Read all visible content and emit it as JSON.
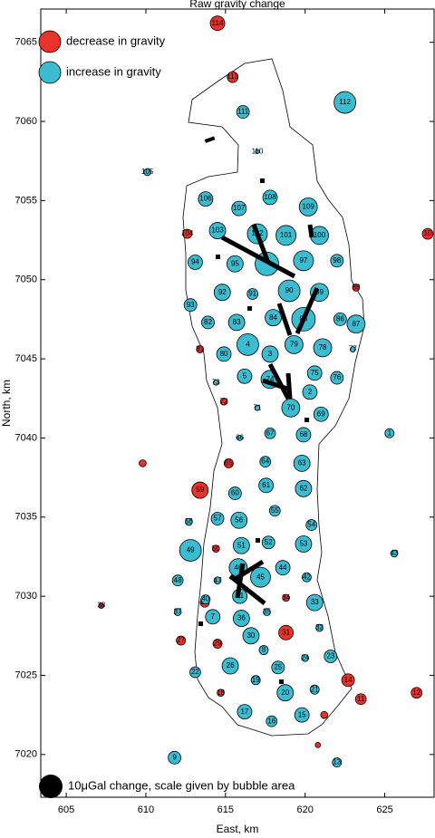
{
  "chart_data": {
    "type": "bubble",
    "title": "Raw gravity change",
    "xlabel": "East, km",
    "ylabel": "North, km",
    "xlim": [
      603.4,
      628.1
    ],
    "ylim": [
      7017.3,
      7067.1
    ],
    "xticks": [
      605,
      610,
      615,
      620,
      625
    ],
    "yticks": [
      7020,
      7025,
      7030,
      7035,
      7040,
      7045,
      7050,
      7055,
      7060,
      7065
    ],
    "size_legend": {
      "label": "10μGal change, scale given by bubble area",
      "value": 10,
      "color": "#000000"
    },
    "series": [
      {
        "name": "decrease in gravity",
        "color": "#e8322a",
        "labels": [
          "114",
          "113",
          "104",
          "88",
          "81",
          "72",
          "65",
          null,
          "59",
          "50",
          "39",
          "34",
          "31",
          "29",
          "27",
          "38",
          "18",
          "14",
          "11",
          "12",
          "10",
          null,
          null
        ],
        "x": [
          614.5,
          615.45,
          612.6,
          623.2,
          613.4,
          614.9,
          615.2,
          609.8,
          613.4,
          614.4,
          613.7,
          618.8,
          618.8,
          614.5,
          612.2,
          607.2,
          614.7,
          622.7,
          623.5,
          627.0,
          627.7,
          621.2,
          620.8
        ],
        "y": [
          7066.2,
          7062.8,
          7052.9,
          7049.5,
          7045.6,
          7042.3,
          7038.4,
          7038.4,
          7036.7,
          7033.0,
          7029.6,
          7029.9,
          7027.7,
          7027.0,
          7027.2,
          7029.4,
          7023.9,
          7024.7,
          7023.5,
          7023.9,
          7052.9,
          7022.5,
          7020.6
        ],
        "sizes": [
          3.8,
          2.1,
          1.5,
          0.9,
          0.9,
          0.9,
          1.5,
          0.9,
          4.8,
          0.9,
          1.5,
          0.9,
          3.8,
          1.5,
          1.5,
          0.5,
          0.9,
          2.9,
          2.1,
          2.1,
          2.1,
          0.9,
          0.5
        ]
      },
      {
        "name": "increase in gravity",
        "color": "#3bbcd0",
        "labels": [
          "112",
          "111",
          "110",
          "105",
          "106",
          "107",
          "108",
          "109",
          "103",
          "102",
          "101",
          "100",
          null,
          "97",
          "98",
          "94",
          "95",
          "90",
          "89",
          "92",
          "91",
          "93",
          "84",
          "85",
          "86",
          "87",
          "82",
          "83",
          "79",
          "78",
          "4",
          "80",
          "77",
          "3",
          "5",
          "74",
          "75",
          "76",
          "2",
          "73",
          "70",
          "69",
          "71",
          "1",
          "66",
          "67",
          "68",
          "63",
          "64",
          "61",
          "62",
          "60",
          "55",
          "57",
          "56",
          "54",
          "58",
          "49",
          "51",
          "52",
          "53",
          "43",
          "46",
          "45",
          "44",
          "42",
          "48",
          "47",
          "41",
          "33",
          "35",
          "40",
          "37",
          "7",
          "36",
          "32",
          "30",
          "8",
          "23",
          "24",
          "26",
          "25",
          "22",
          "19",
          "21",
          "20",
          "17",
          "16",
          "15",
          "9",
          "13"
        ],
        "x": [
          622.5,
          616.1,
          617.0,
          610.1,
          613.75,
          615.85,
          617.8,
          620.2,
          614.5,
          617.0,
          618.8,
          620.9,
          617.6,
          619.9,
          622.0,
          613.1,
          615.6,
          619.0,
          620.9,
          614.8,
          616.7,
          612.8,
          618.0,
          619.9,
          622.2,
          623.2,
          613.9,
          615.7,
          619.3,
          621.1,
          616.4,
          614.9,
          623.0,
          617.8,
          616.2,
          617.8,
          620.6,
          622.0,
          620.3,
          614.4,
          619.1,
          621.0,
          617.0,
          625.3,
          615.9,
          617.8,
          619.9,
          619.8,
          617.5,
          617.55,
          619.9,
          615.6,
          618.1,
          614.5,
          615.85,
          620.4,
          612.7,
          612.8,
          616.0,
          617.7,
          619.9,
          625.6,
          615.8,
          617.2,
          618.6,
          620.1,
          612.0,
          614.5,
          615.9,
          620.6,
          617.6,
          613.75,
          612.0,
          614.2,
          616.0,
          620.9,
          616.6,
          617.4,
          621.6,
          620.0,
          615.3,
          618.3,
          613.1,
          616.9,
          620.6,
          618.75,
          616.2,
          617.9,
          619.8,
          611.8,
          622.0
        ],
        "y": [
          7061.2,
          7060.6,
          7058.1,
          7056.8,
          7055.1,
          7054.5,
          7055.2,
          7054.6,
          7053.1,
          7052.9,
          7052.8,
          7052.8,
          7051.0,
          7051.2,
          7051.2,
          7051.1,
          7051.0,
          7049.3,
          7049.2,
          7049.2,
          7049.1,
          7048.4,
          7047.6,
          7047.5,
          7047.5,
          7047.2,
          7047.3,
          7047.3,
          7045.9,
          7045.7,
          7045.9,
          7045.3,
          7045.6,
          7045.3,
          7043.9,
          7043.7,
          7044.1,
          7043.8,
          7042.9,
          7043.5,
          7041.9,
          7041.5,
          7041.9,
          7040.3,
          7040.0,
          7040.3,
          7040.2,
          7038.4,
          7038.5,
          7037.0,
          7036.8,
          7036.5,
          7035.4,
          7034.9,
          7034.8,
          7034.5,
          7034.7,
          7032.9,
          7033.2,
          7033.4,
          7033.3,
          7032.7,
          7031.8,
          7031.2,
          7031.8,
          7031.2,
          7031.0,
          7031.0,
          7030.0,
          7029.6,
          7029.0,
          7029.8,
          7029.0,
          7028.7,
          7028.6,
          7028.0,
          7027.5,
          7026.6,
          7026.2,
          7026.1,
          7025.6,
          7025.5,
          7025.2,
          7024.7,
          7024.1,
          7023.9,
          7022.7,
          7022.1,
          7022.5,
          7019.8,
          7019.5
        ],
        "sizes": [
          8.5,
          2.9,
          0.3,
          0.9,
          3.8,
          3.8,
          3.8,
          5.9,
          4.8,
          7.2,
          7.2,
          5.9,
          10,
          7.2,
          2.9,
          3.8,
          4.8,
          8.5,
          5.9,
          4.8,
          2.1,
          2.9,
          4.8,
          10,
          2.9,
          5.9,
          2.9,
          4.8,
          5.9,
          5.9,
          8.5,
          3.8,
          0.5,
          4.8,
          3.8,
          5.9,
          3.8,
          2.9,
          3.8,
          0.5,
          5.9,
          3.8,
          0.5,
          1.5,
          0.5,
          2.1,
          3.8,
          4.8,
          2.1,
          3.8,
          4.8,
          2.9,
          2.1,
          2.9,
          4.8,
          2.1,
          0.9,
          8.5,
          4.8,
          2.9,
          4.8,
          0.9,
          5.9,
          7.2,
          3.8,
          1.5,
          2.1,
          0.9,
          3.8,
          4.8,
          0.9,
          1.5,
          0.9,
          3.8,
          4.8,
          0.9,
          4.8,
          1.5,
          2.9,
          0.9,
          4.8,
          2.9,
          2.1,
          1.5,
          1.5,
          4.8,
          3.8,
          2.1,
          3.8,
          2.9,
          1.5
        ]
      }
    ]
  }
}
